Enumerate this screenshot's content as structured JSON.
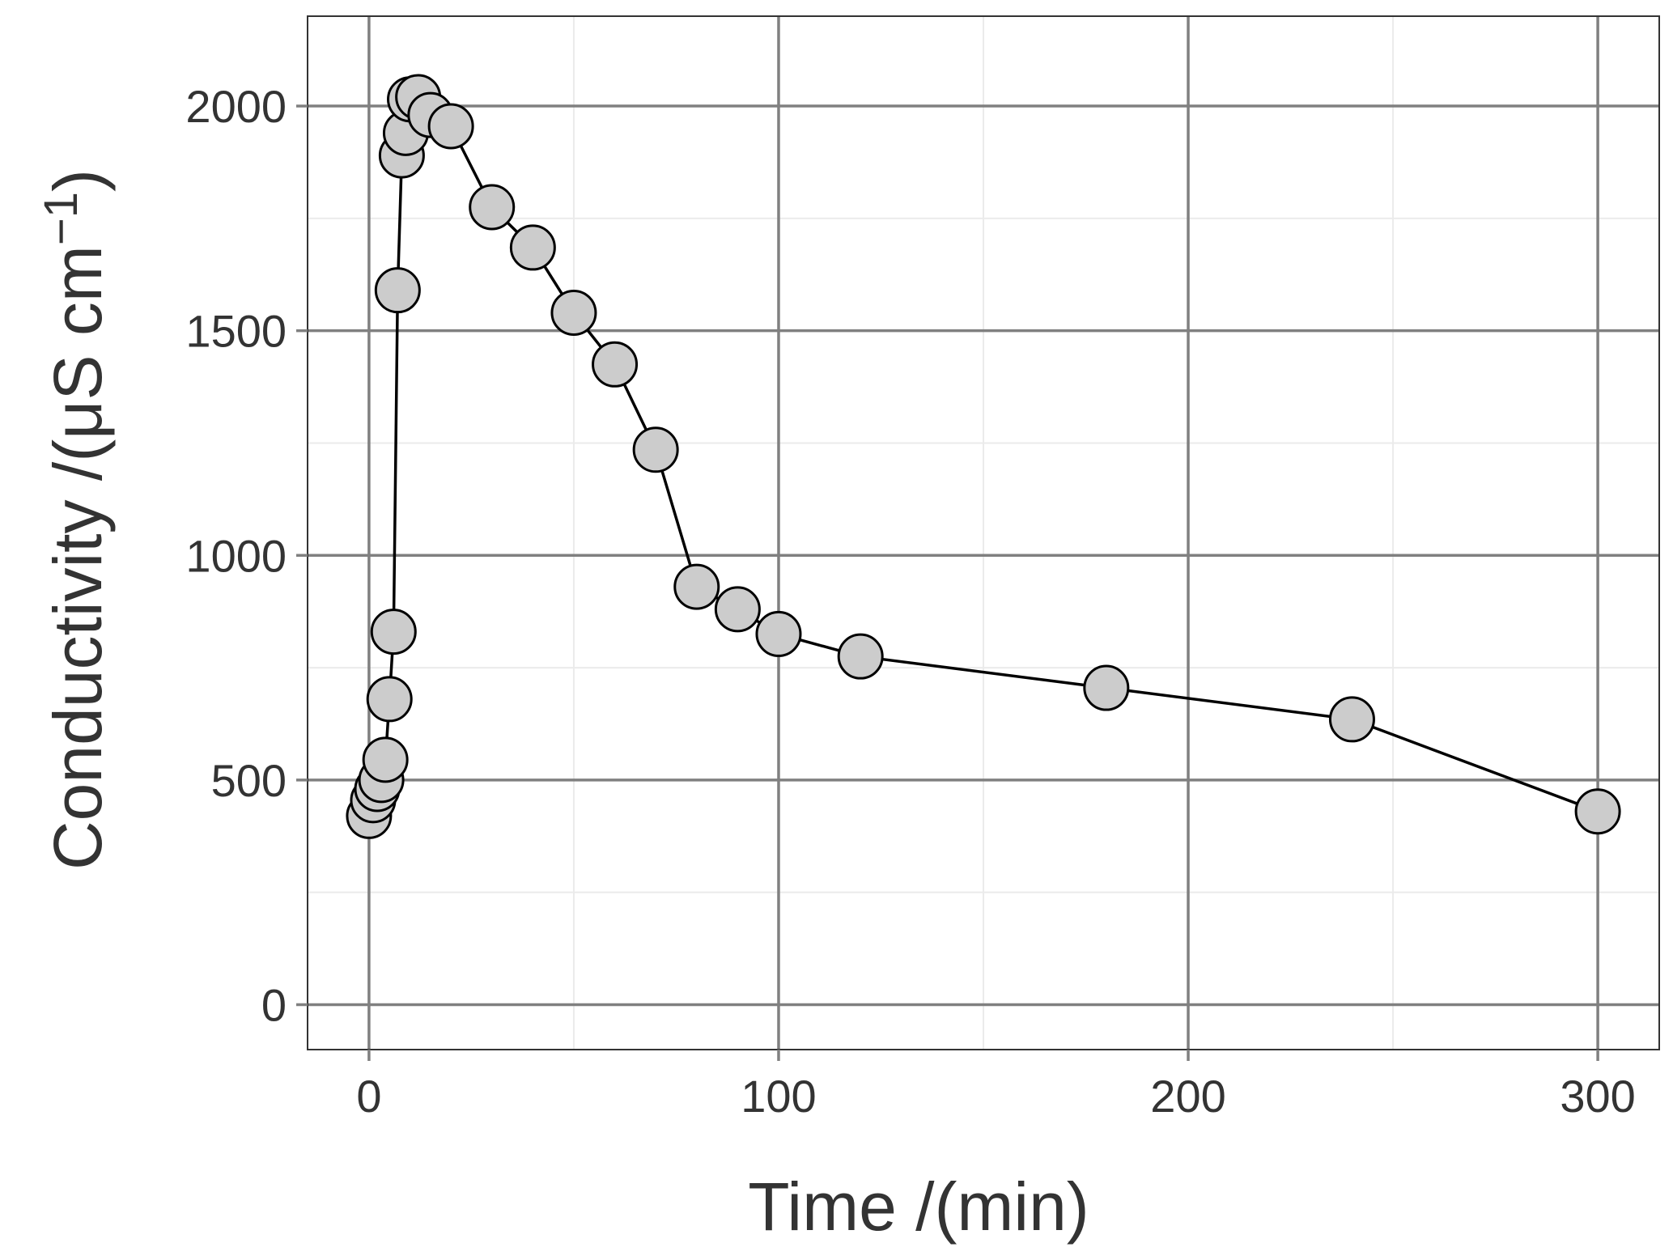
{
  "chart_data": {
    "type": "scatter",
    "mode": "line+points",
    "xlabel": "Time /(min)",
    "ylabel": {
      "prefix": "Conductivity /(μS cm",
      "superscript": "−1",
      "suffix": ")"
    },
    "xlim": [
      -15,
      315
    ],
    "ylim": [
      -100,
      2200
    ],
    "x_ticks": [
      0,
      100,
      200,
      300
    ],
    "x_tick_labels": [
      "0",
      "100",
      "200",
      "300"
    ],
    "y_ticks": [
      0,
      500,
      1000,
      1500,
      2000
    ],
    "y_tick_labels": [
      "0",
      "500",
      "1000",
      "1500",
      "2000"
    ],
    "x_minor_grid": [
      50,
      150,
      250
    ],
    "y_minor_grid": [
      250,
      750,
      1250,
      1750
    ],
    "grid": true,
    "legend": "none",
    "colors": {
      "point_fill": "#cccccc",
      "point_stroke": "#000000",
      "line": "#000000",
      "major_grid": "#808080",
      "minor_grid": "#ebebeb",
      "panel_border": "#333333",
      "text": "#333333"
    },
    "series": [
      {
        "x": [
          0,
          1,
          2,
          3,
          4,
          5,
          6,
          7,
          8,
          9,
          10,
          12,
          15,
          20,
          30,
          40,
          50,
          60,
          70,
          80,
          90,
          100,
          120,
          180,
          240,
          300
        ],
        "y": [
          420,
          455,
          480,
          500,
          545,
          680,
          830,
          1590,
          1890,
          1940,
          2015,
          2020,
          1980,
          1955,
          1775,
          1685,
          1540,
          1425,
          1235,
          930,
          880,
          825,
          775,
          705,
          635,
          430
        ]
      }
    ]
  }
}
